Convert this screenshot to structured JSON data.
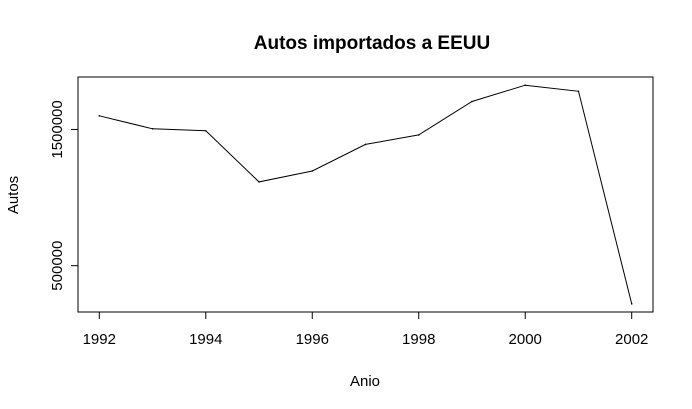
{
  "chart_data": {
    "type": "line",
    "title": "Autos importados a EEUU",
    "xlabel": "Anio",
    "ylabel": "Autos",
    "x": [
      1992,
      1993,
      1994,
      1995,
      1996,
      1997,
      1998,
      1999,
      2000,
      2001,
      2002
    ],
    "series": [
      {
        "values": [
          1600000,
          1505000,
          1490000,
          1115000,
          1195000,
          1390000,
          1460000,
          1705000,
          1825000,
          1780000,
          220000
        ]
      }
    ],
    "xlim": [
      1991.6,
      2002.4
    ],
    "ylim": [
      160000,
      1885000
    ],
    "xticks": [
      1992,
      1994,
      1996,
      1998,
      2000,
      2002
    ],
    "yticks": [
      500000,
      1500000
    ],
    "grid": false,
    "line_color": "#000000"
  }
}
